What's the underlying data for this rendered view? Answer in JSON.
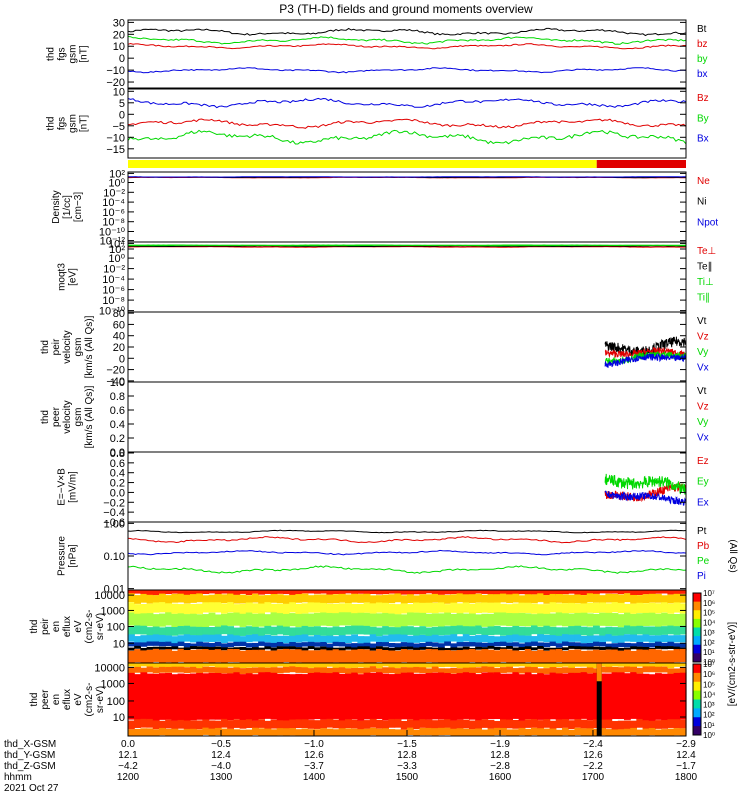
{
  "title": "P3 (TH-D) fields and ground moments overview",
  "colors": {
    "black": "#000000",
    "red": "#e00000",
    "green": "#00d800",
    "blue": "#0000e0",
    "yellow": "#ffff00"
  },
  "status_bar": {
    "yellow_fraction": 0.84
  },
  "spectro_colorbar": {
    "label": "[eV/(cm2-s-str-eV)]",
    "ticks_top": [
      "10⁷",
      "10⁶",
      "10⁵",
      "10⁴",
      "10³",
      "10²",
      "10¹",
      "10⁰"
    ],
    "ticks_bottom": [
      "10⁷",
      "10⁶",
      "10⁵",
      "10⁴",
      "10³",
      "10²",
      "10¹",
      "10⁰"
    ]
  },
  "chart_data": [
    {
      "type": "line",
      "ylabel_lines": [
        "thd",
        "fgs",
        "gsm",
        "[nT]"
      ],
      "ylim": [
        -25,
        32
      ],
      "yticks": [
        {
          "v": 30,
          "t": "30"
        },
        {
          "v": 20,
          "t": "20"
        },
        {
          "v": 10,
          "t": "10"
        },
        {
          "v": 0,
          "t": "0"
        },
        {
          "v": -10,
          "t": "−10"
        },
        {
          "v": -20,
          "t": "−20"
        }
      ],
      "series": [
        {
          "name": "Bt",
          "color": "#000000",
          "base": 22,
          "amp": 3
        },
        {
          "name": "bz",
          "color": "#e00000",
          "base": 10,
          "amp": 2
        },
        {
          "name": "by",
          "color": "#00d800",
          "base": 15,
          "amp": 3
        },
        {
          "name": "bx",
          "color": "#0000e0",
          "base": -10,
          "amp": 2
        }
      ]
    },
    {
      "type": "line",
      "ylabel_lines": [
        "thd",
        "fgs",
        "gsm",
        "[nT]"
      ],
      "ylim": [
        -19,
        11
      ],
      "yticks": [
        {
          "v": 10,
          "t": "10"
        },
        {
          "v": 5,
          "t": "5"
        },
        {
          "v": 0,
          "t": "0"
        },
        {
          "v": -5,
          "t": "−5"
        },
        {
          "v": -10,
          "t": "−10"
        },
        {
          "v": -15,
          "t": "−15"
        }
      ],
      "series": [
        {
          "name": "Bz",
          "color": "#e00000",
          "base": -4,
          "amp": 2
        },
        {
          "name": "By",
          "color": "#00d800",
          "base": -10,
          "amp": 3
        },
        {
          "name": "Bx",
          "color": "#0000e0",
          "base": 5,
          "amp": 2
        }
      ]
    },
    {
      "type": "line",
      "ylabel_lines": [
        "Density",
        "[1/cc]",
        "[cm−3]"
      ],
      "ylim": [
        0,
        1
      ],
      "yticks": [
        {
          "v": 0.98,
          "t": "10²"
        },
        {
          "v": 0.85,
          "t": "10⁰"
        },
        {
          "v": 0.71,
          "t": "10⁻²"
        },
        {
          "v": 0.57,
          "t": "10⁻⁴"
        },
        {
          "v": 0.43,
          "t": "10⁻⁶"
        },
        {
          "v": 0.29,
          "t": "10⁻⁸"
        },
        {
          "v": 0.15,
          "t": "10⁻¹⁰"
        },
        {
          "v": 0.02,
          "t": "10⁻¹²"
        }
      ],
      "series": [
        {
          "name": "Ne",
          "color": "#e00000",
          "base": 0.92,
          "amp": 0.005
        },
        {
          "name": "Ni",
          "color": "#000000",
          "base": 0.925,
          "amp": 0.005
        },
        {
          "name": "Npot",
          "color": "#0000e0",
          "base": 0.93,
          "amp": 0.003
        }
      ]
    },
    {
      "type": "line",
      "ylabel_lines": [
        "moqt3",
        "[eV]"
      ],
      "ylim": [
        0,
        1
      ],
      "yticks": [
        {
          "v": 0.98,
          "t": "10⁴"
        },
        {
          "v": 0.9,
          "t": "10²"
        },
        {
          "v": 0.77,
          "t": "10⁰"
        },
        {
          "v": 0.62,
          "t": "10⁻²"
        },
        {
          "v": 0.47,
          "t": "10⁻⁴"
        },
        {
          "v": 0.32,
          "t": "10⁻⁶"
        },
        {
          "v": 0.17,
          "t": "10⁻⁸"
        },
        {
          "v": 0.02,
          "t": "10⁻¹⁰"
        }
      ],
      "series": [
        {
          "name": "Te⊥",
          "color": "#e00000",
          "base": 0.93,
          "amp": 0.005
        },
        {
          "name": "Te∥",
          "color": "#000000",
          "base": 0.94,
          "amp": 0.005
        },
        {
          "name": "Ti⊥",
          "color": "#00d800",
          "base": 0.95,
          "amp": 0.003
        },
        {
          "name": "Ti∥",
          "color": "#00d800",
          "base": 0.955,
          "amp": 0.003
        }
      ]
    },
    {
      "type": "line",
      "ylabel_lines": [
        "thd",
        "peir",
        "velocity",
        "gsm",
        "[km/s (All Qs)]"
      ],
      "ylim": [
        -42,
        82
      ],
      "data_start": 0.855,
      "yticks": [
        {
          "v": 80,
          "t": "80"
        },
        {
          "v": 60,
          "t": "60"
        },
        {
          "v": 40,
          "t": "40"
        },
        {
          "v": 20,
          "t": "20"
        },
        {
          "v": 0,
          "t": "0"
        },
        {
          "v": -20,
          "t": "−20"
        },
        {
          "v": -40,
          "t": "−40"
        }
      ],
      "series": [
        {
          "name": "Vt",
          "color": "#000000",
          "base": 25,
          "amp": 15
        },
        {
          "name": "Vz",
          "color": "#e00000",
          "base": 5,
          "amp": 10
        },
        {
          "name": "Vy",
          "color": "#00d800",
          "base": 0,
          "amp": 10
        },
        {
          "name": "Vx",
          "color": "#0000e0",
          "base": -3,
          "amp": 10
        }
      ]
    },
    {
      "type": "line",
      "ylabel_lines": [
        "thd",
        "peer",
        "velocity",
        "gsm",
        "[km/s (All Qs)]"
      ],
      "ylim": [
        0,
        1
      ],
      "yticks": [
        {
          "v": 1.0,
          "t": "1.0"
        },
        {
          "v": 0.8,
          "t": "0.8"
        },
        {
          "v": 0.6,
          "t": "0.6"
        },
        {
          "v": 0.4,
          "t": "0.4"
        },
        {
          "v": 0.2,
          "t": "0.2"
        },
        {
          "v": 0.0,
          "t": "0.0"
        }
      ],
      "series": [
        {
          "name": "Vt",
          "color": "#000000"
        },
        {
          "name": "Vz",
          "color": "#e00000"
        },
        {
          "name": "Vy",
          "color": "#00d800"
        },
        {
          "name": "Vx",
          "color": "#0000e0"
        }
      ]
    },
    {
      "type": "line",
      "ylabel_lines": [
        "E=−V×B",
        "[mV/m]"
      ],
      "ylim": [
        -0.6,
        0.82
      ],
      "data_start": 0.855,
      "yticks": [
        {
          "v": 0.8,
          "t": "0.8"
        },
        {
          "v": 0.6,
          "t": "0.6"
        },
        {
          "v": 0.4,
          "t": "0.4"
        },
        {
          "v": 0.2,
          "t": "0.2"
        },
        {
          "v": 0.0,
          "t": "0.0"
        },
        {
          "v": -0.2,
          "t": "−0.2"
        },
        {
          "v": -0.4,
          "t": "−0.4"
        },
        {
          "v": -0.6,
          "t": "−0.6"
        }
      ],
      "series": [
        {
          "name": "Ez",
          "color": "#e00000",
          "base": 0.0,
          "amp": 0.15
        },
        {
          "name": "Ey",
          "color": "#00d800",
          "base": 0.12,
          "amp": 0.2
        },
        {
          "name": "Ex",
          "color": "#0000e0",
          "base": -0.08,
          "amp": 0.12
        }
      ]
    },
    {
      "type": "line",
      "ylabel_lines": [
        "Pressure",
        "[nPa]"
      ],
      "ylim": [
        0,
        1
      ],
      "yticks": [
        {
          "v": 0.98,
          "t": "1.00"
        },
        {
          "v": 0.5,
          "t": "0.10"
        },
        {
          "v": 0.02,
          "t": "0.01"
        }
      ],
      "series": [
        {
          "name": "Pt",
          "color": "#000000",
          "base": 0.86,
          "amp": 0.02
        },
        {
          "name": "Pb",
          "color": "#e00000",
          "base": 0.74,
          "amp": 0.04
        },
        {
          "name": "Pe",
          "color": "#00d800",
          "base": 0.3,
          "amp": 0.05
        },
        {
          "name": "Pi",
          "color": "#0000e0",
          "base": 0.55,
          "amp": 0.03
        }
      ],
      "right_label": "(All Qs)"
    },
    {
      "type": "heatmap",
      "ylabel_lines": [
        "thd",
        "peir",
        "en",
        "eflux",
        "eV",
        "(cm2-s-",
        "sr-eV)"
      ],
      "yticks": [
        {
          "v": 0.93,
          "t": "10000"
        },
        {
          "v": 0.72,
          "t": "1000"
        },
        {
          "v": 0.5,
          "t": "100"
        },
        {
          "v": 0.27,
          "t": "10"
        }
      ]
    },
    {
      "type": "heatmap",
      "ylabel_lines": [
        "thd",
        "peer",
        "en",
        "eflux",
        "eV",
        "(cm2-s-",
        "sr-eV)"
      ],
      "yticks": [
        {
          "v": 0.94,
          "t": "10000"
        },
        {
          "v": 0.72,
          "t": "1000"
        },
        {
          "v": 0.48,
          "t": "100"
        },
        {
          "v": 0.26,
          "t": "10"
        }
      ]
    }
  ],
  "xaxis": {
    "row_labels": [
      "thd_X-GSM",
      "thd_Y-GSM",
      "thd_Z-GSM",
      "hhmm",
      "2021 Oct 27"
    ],
    "ticks": [
      {
        "f": 0.0,
        "vals": [
          "0.0",
          "12.1",
          "−4.2",
          "1200"
        ]
      },
      {
        "f": 0.1667,
        "vals": [
          "−0.5",
          "12.4",
          "−4.0",
          "1300"
        ]
      },
      {
        "f": 0.3333,
        "vals": [
          "−1.0",
          "12.6",
          "−3.7",
          "1400"
        ]
      },
      {
        "f": 0.5,
        "vals": [
          "−1.5",
          "12.8",
          "−3.3",
          "1500"
        ]
      },
      {
        "f": 0.6667,
        "vals": [
          "−1.9",
          "12.8",
          "−2.8",
          "1600"
        ]
      },
      {
        "f": 0.8333,
        "vals": [
          "−2.4",
          "12.6",
          "−2.2",
          "1700"
        ]
      },
      {
        "f": 1.0,
        "vals": [
          "−2.9",
          "12.4",
          "−1.7",
          "1800"
        ]
      }
    ]
  }
}
